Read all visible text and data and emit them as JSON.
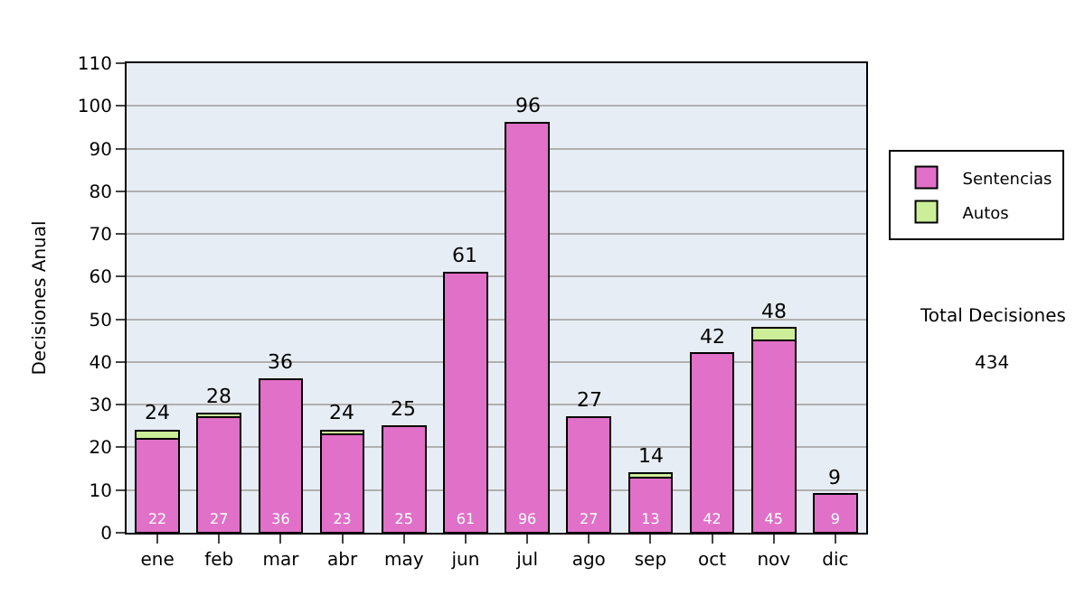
{
  "chart_data": {
    "type": "bar",
    "stacked": true,
    "ylabel": "Decisiones Anual",
    "categories": [
      "ene",
      "feb",
      "mar",
      "abr",
      "may",
      "jun",
      "jul",
      "ago",
      "sep",
      "oct",
      "nov",
      "dic"
    ],
    "series": [
      {
        "name": "Sentencias",
        "color": "#e070c8",
        "values": [
          22,
          27,
          36,
          23,
          25,
          61,
          96,
          27,
          13,
          42,
          45,
          9
        ],
        "value_labels": [
          "22",
          "27",
          "36",
          "23",
          "25",
          "61",
          "96",
          "27",
          "13",
          "42",
          "45",
          "9"
        ]
      },
      {
        "name": "Autos",
        "color": "#ccee99",
        "values": [
          2,
          1,
          0,
          1,
          0,
          0,
          0,
          0,
          1,
          0,
          3,
          0
        ]
      }
    ],
    "totals": [
      "24",
      "28",
      "36",
      "24",
      "25",
      "61",
      "96",
      "27",
      "14",
      "42",
      "48",
      "9"
    ],
    "ylim": [
      0,
      110
    ],
    "yticks": [
      0,
      10,
      20,
      30,
      40,
      50,
      60,
      70,
      80,
      90,
      100,
      110
    ],
    "grid": "y",
    "legend": "right",
    "annotations": [
      "Total Decisiones",
      "434"
    ]
  }
}
